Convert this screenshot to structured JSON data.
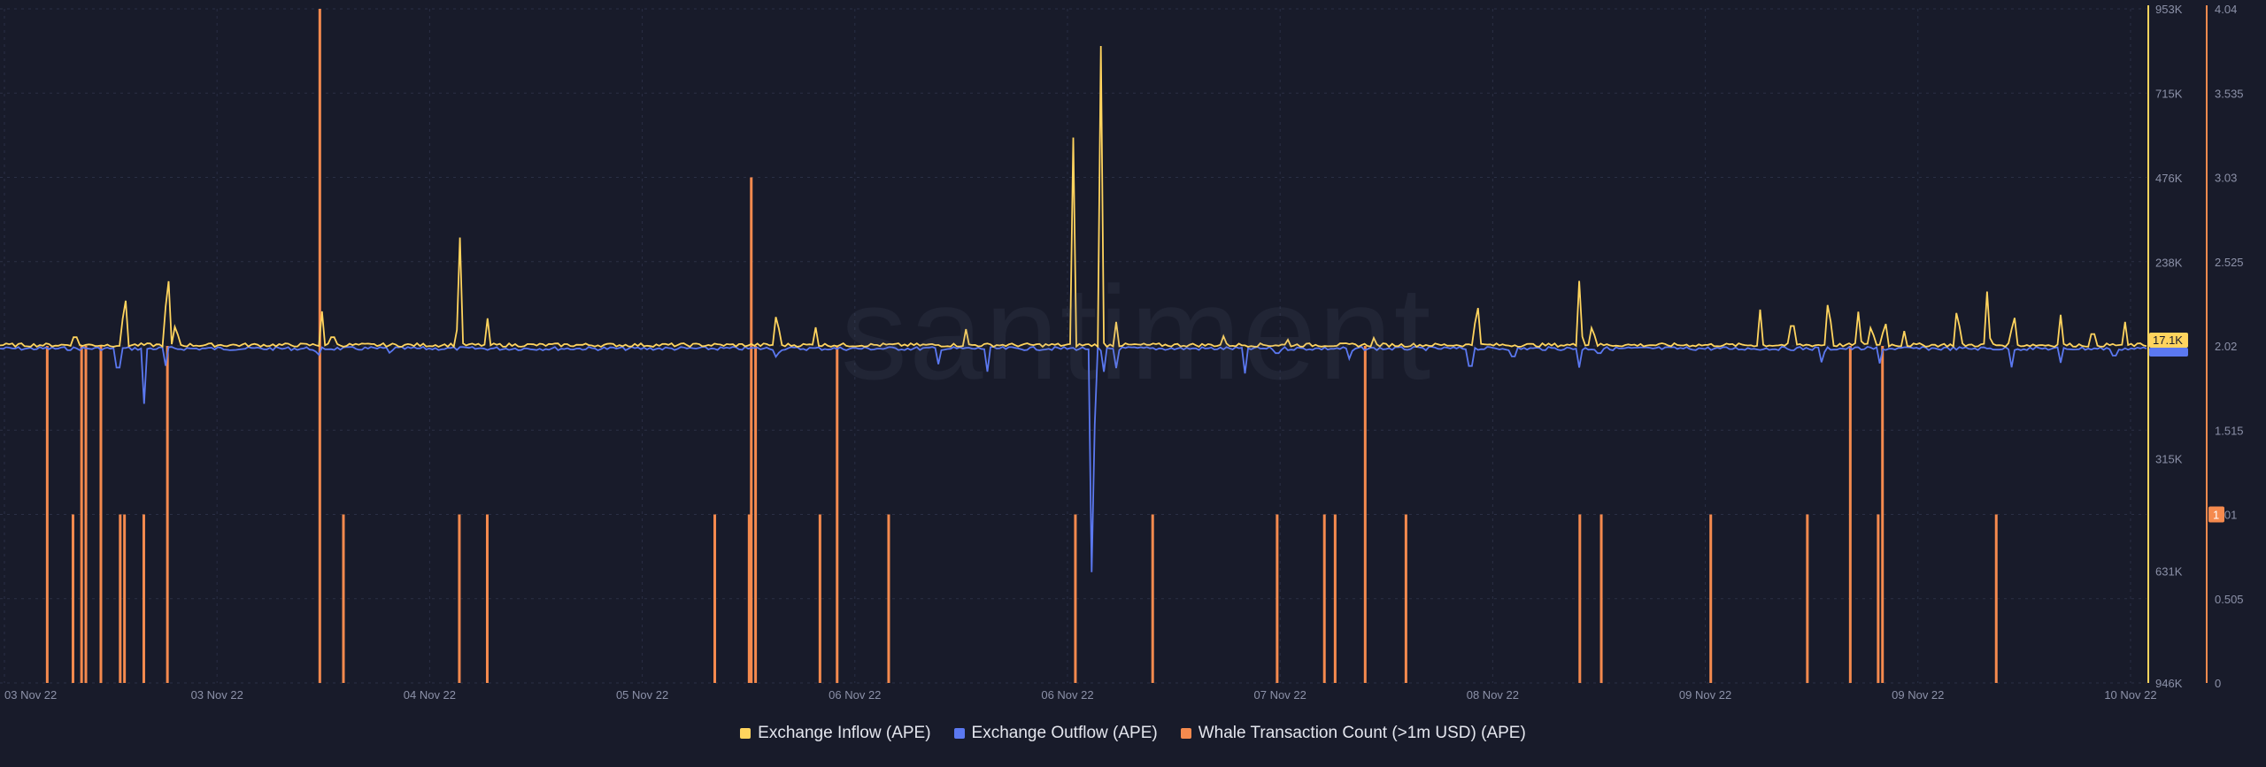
{
  "watermark": "santiment",
  "colors": {
    "background": "#181b2a",
    "inflow": "#ffd45e",
    "outflow": "#5b78f0",
    "whale": "#f58a4e",
    "grid": "#2a2f45",
    "axis_text": "#8c91a8"
  },
  "chart_data": {
    "type": "line",
    "xlabels": [
      "03 Nov 22",
      "03 Nov 22",
      "04 Nov 22",
      "05 Nov 22",
      "06 Nov 22",
      "06 Nov 22",
      "07 Nov 22",
      "08 Nov 22",
      "09 Nov 22",
      "09 Nov 22",
      "10 Nov 22"
    ],
    "inflow_axis_ticks": [
      "953K",
      "715K",
      "476K",
      "238K",
      "315K",
      "631K",
      "946K"
    ],
    "whale_axis_ticks": [
      "4.04",
      "3.535",
      "3.03",
      "2.525",
      "2.02",
      "1.515",
      "1.01",
      "0.505",
      "0"
    ],
    "current_labels": {
      "inflow": "17.1K",
      "whale": "1"
    },
    "x_range": [
      0,
      1000
    ],
    "series": [
      {
        "name": "Exchange Inflow (APE)",
        "type": "line",
        "peaks": [
          {
            "x": 35,
            "v": 60
          },
          {
            "x": 58,
            "v": 232
          },
          {
            "x": 78,
            "v": 330
          },
          {
            "x": 82,
            "v": 100
          },
          {
            "x": 150,
            "v": 100
          },
          {
            "x": 155,
            "v": 60
          },
          {
            "x": 214,
            "v": 395
          },
          {
            "x": 227,
            "v": 90
          },
          {
            "x": 362,
            "v": 150
          },
          {
            "x": 500,
            "v": 590
          },
          {
            "x": 513,
            "v": 953
          },
          {
            "x": 520,
            "v": 70
          },
          {
            "x": 688,
            "v": 195
          },
          {
            "x": 736,
            "v": 238
          },
          {
            "x": 742,
            "v": 95
          },
          {
            "x": 820,
            "v": 105
          },
          {
            "x": 835,
            "v": 130
          },
          {
            "x": 852,
            "v": 210
          },
          {
            "x": 866,
            "v": 127
          },
          {
            "x": 872,
            "v": 95
          },
          {
            "x": 878,
            "v": 115
          },
          {
            "x": 887,
            "v": 50
          },
          {
            "x": 912,
            "v": 170
          },
          {
            "x": 926,
            "v": 200
          },
          {
            "x": 938,
            "v": 145
          },
          {
            "x": 960,
            "v": 90
          },
          {
            "x": 975,
            "v": 80
          },
          {
            "x": 990,
            "v": 70
          },
          {
            "x": 450,
            "v": 50
          },
          {
            "x": 380,
            "v": 55
          },
          {
            "x": 570,
            "v": 30
          },
          {
            "x": 600,
            "v": 20
          },
          {
            "x": 640,
            "v": 25
          }
        ]
      },
      {
        "name": "Exchange Outflow (APE)",
        "type": "line",
        "troughs": [
          {
            "x": 55,
            "v": 130
          },
          {
            "x": 67,
            "v": 180
          },
          {
            "x": 77,
            "v": 60
          },
          {
            "x": 148,
            "v": 40
          },
          {
            "x": 182,
            "v": 30
          },
          {
            "x": 362,
            "v": 50
          },
          {
            "x": 437,
            "v": 55
          },
          {
            "x": 460,
            "v": 70
          },
          {
            "x": 509,
            "v": 946
          },
          {
            "x": 514,
            "v": 90
          },
          {
            "x": 520,
            "v": 60
          },
          {
            "x": 580,
            "v": 75
          },
          {
            "x": 595,
            "v": 40
          },
          {
            "x": 629,
            "v": 50
          },
          {
            "x": 685,
            "v": 120
          },
          {
            "x": 705,
            "v": 60
          },
          {
            "x": 736,
            "v": 75
          },
          {
            "x": 745,
            "v": 40
          },
          {
            "x": 849,
            "v": 65
          },
          {
            "x": 876,
            "v": 60
          },
          {
            "x": 937,
            "v": 65
          },
          {
            "x": 960,
            "v": 45
          },
          {
            "x": 985,
            "v": 55
          }
        ]
      },
      {
        "name": "Whale Transaction Count (>1m USD) (APE)",
        "type": "bar",
        "bars": [
          {
            "x": 22,
            "v": 2.02
          },
          {
            "x": 34,
            "v": 1.01
          },
          {
            "x": 38,
            "v": 2.02
          },
          {
            "x": 40,
            "v": 2.02
          },
          {
            "x": 47,
            "v": 2.02
          },
          {
            "x": 56,
            "v": 1.01
          },
          {
            "x": 58,
            "v": 1.01
          },
          {
            "x": 67,
            "v": 1.01
          },
          {
            "x": 78,
            "v": 2.02
          },
          {
            "x": 149,
            "v": 4.04
          },
          {
            "x": 160,
            "v": 1.01
          },
          {
            "x": 214,
            "v": 1.01
          },
          {
            "x": 227,
            "v": 1.01
          },
          {
            "x": 333,
            "v": 1.01
          },
          {
            "x": 349,
            "v": 1.01
          },
          {
            "x": 350,
            "v": 3.03
          },
          {
            "x": 352,
            "v": 2.02
          },
          {
            "x": 382,
            "v": 1.01
          },
          {
            "x": 390,
            "v": 2.02
          },
          {
            "x": 414,
            "v": 1.01
          },
          {
            "x": 501,
            "v": 1.01
          },
          {
            "x": 537,
            "v": 1.01
          },
          {
            "x": 595,
            "v": 1.01
          },
          {
            "x": 617,
            "v": 1.01
          },
          {
            "x": 622,
            "v": 1.01
          },
          {
            "x": 636,
            "v": 2.02
          },
          {
            "x": 655,
            "v": 1.01
          },
          {
            "x": 736,
            "v": 1.01
          },
          {
            "x": 746,
            "v": 1.01
          },
          {
            "x": 797,
            "v": 1.01
          },
          {
            "x": 842,
            "v": 1.01
          },
          {
            "x": 862,
            "v": 2.02
          },
          {
            "x": 875,
            "v": 1.01
          },
          {
            "x": 877,
            "v": 2.02
          },
          {
            "x": 930,
            "v": 1.01
          }
        ]
      }
    ]
  }
}
